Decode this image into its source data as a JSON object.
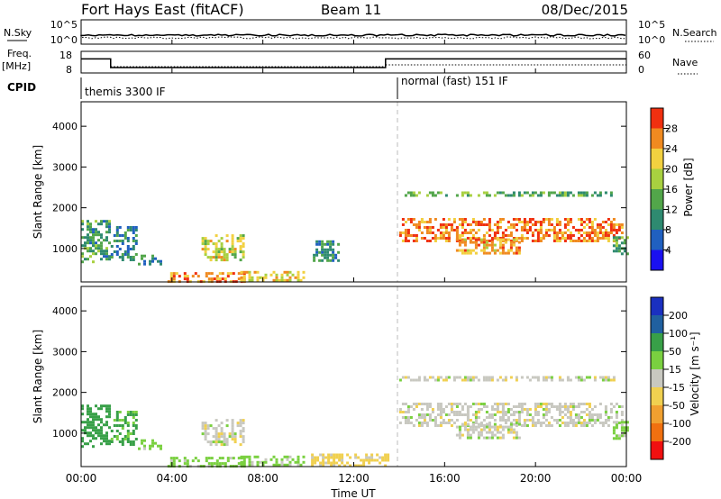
{
  "header": {
    "site": "Fort Hays East (fitACF)",
    "beam": "Beam 11",
    "date": "08/Dec/2015"
  },
  "summary_panels": {
    "nsky_label": "N.Sky",
    "nsearch_label": "N.Search",
    "noise_ticks_left": [
      "10^5",
      "10^0"
    ],
    "noise_ticks_right": [
      "10^5",
      "10^0"
    ],
    "freq_label_1": "Freq.",
    "freq_label_2": "[MHz]",
    "freq_ticks": [
      "18",
      "8"
    ],
    "nave_label": "Nave",
    "nave_ticks": [
      "60",
      "0"
    ],
    "cpid_label": "CPID",
    "cpid_segments": [
      "themis 3300 IF",
      "normal (fast) 151 IF"
    ]
  },
  "axes": {
    "x_ticks": [
      "00:00",
      "04:00",
      "08:00",
      "12:00",
      "16:00",
      "20:00",
      "00:00"
    ],
    "xlabel": "Time UT",
    "ylabel": "Slant Range [km]",
    "y_ticks": [
      "1000",
      "2000",
      "3000",
      "4000"
    ]
  },
  "colorbars": {
    "power_label": "Power [dB]",
    "power_ticks": [
      "4",
      "8",
      "12",
      "16",
      "20",
      "24",
      "28"
    ],
    "power_colors": [
      "#1a10f0",
      "#2060c0",
      "#2e8a70",
      "#52a64a",
      "#a8d040",
      "#f2d040",
      "#f08a20",
      "#f03010"
    ],
    "velocity_label": "Velocity [m s⁻¹]",
    "velocity_ticks": [
      "200",
      "100",
      "50",
      "15",
      "-15",
      "-50",
      "-100",
      "-200"
    ],
    "velocity_colors": [
      "#1a30c0",
      "#2060a0",
      "#38a048",
      "#7ad040",
      "#c8c8c0",
      "#f0d050",
      "#f0a030",
      "#f07010",
      "#f01010"
    ]
  },
  "chart_data": [
    {
      "type": "heatmap",
      "title": "",
      "xlabel": "Time UT",
      "ylabel": "Slant Range [km]",
      "xlim": [
        0,
        24
      ],
      "ylim": [
        180,
        4600
      ],
      "colorbar": "Power [dB]",
      "scatter_regions": [
        {
          "t": [
            0.0,
            1.3
          ],
          "r": [
            700,
            1700
          ],
          "level": 12
        },
        {
          "t": [
            1.3,
            2.4
          ],
          "r": [
            750,
            1550
          ],
          "level": 9
        },
        {
          "t": [
            2.5,
            3.5
          ],
          "r": [
            650,
            850
          ],
          "level": 10
        },
        {
          "t": [
            3.8,
            7.2
          ],
          "r": [
            200,
            420
          ],
          "level": 26
        },
        {
          "t": [
            5.3,
            7.2
          ],
          "r": [
            750,
            1350
          ],
          "level": 20
        },
        {
          "t": [
            7.0,
            9.8
          ],
          "r": [
            250,
            450
          ],
          "level": 21
        },
        {
          "t": [
            10.2,
            11.3
          ],
          "r": [
            700,
            1200
          ],
          "level": 10
        },
        {
          "t": [
            14.0,
            23.8
          ],
          "r": [
            1200,
            1750
          ],
          "level": 27
        },
        {
          "t": [
            14.0,
            23.5
          ],
          "r": [
            2300,
            2400
          ],
          "level": 14
        },
        {
          "t": [
            16.5,
            19.3
          ],
          "r": [
            900,
            1250
          ],
          "level": 24
        },
        {
          "t": [
            23.4,
            24.0
          ],
          "r": [
            900,
            1300
          ],
          "level": 13
        }
      ]
    },
    {
      "type": "heatmap",
      "title": "",
      "xlabel": "Time UT",
      "ylabel": "Slant Range [km]",
      "xlim": [
        0,
        24
      ],
      "ylim": [
        180,
        4600
      ],
      "colorbar": "Velocity [m s⁻¹]",
      "scatter_regions": [
        {
          "t": [
            0.0,
            1.3
          ],
          "r": [
            700,
            1700
          ],
          "vel": 80
        },
        {
          "t": [
            1.3,
            2.4
          ],
          "r": [
            750,
            1550
          ],
          "vel": 60
        },
        {
          "t": [
            2.5,
            3.5
          ],
          "r": [
            650,
            850
          ],
          "vel": 30
        },
        {
          "t": [
            3.8,
            7.2
          ],
          "r": [
            200,
            420
          ],
          "vel": 30
        },
        {
          "t": [
            5.3,
            7.2
          ],
          "r": [
            750,
            1350
          ],
          "vel": 0
        },
        {
          "t": [
            7.0,
            9.8
          ],
          "r": [
            250,
            450
          ],
          "vel": 25
        },
        {
          "t": [
            10.0,
            13.5
          ],
          "r": [
            220,
            500
          ],
          "vel": -30
        },
        {
          "t": [
            14.0,
            23.8
          ],
          "r": [
            1200,
            1750
          ],
          "vel": 0
        },
        {
          "t": [
            14.0,
            23.5
          ],
          "r": [
            2300,
            2400
          ],
          "vel": 0
        },
        {
          "t": [
            16.5,
            19.3
          ],
          "r": [
            900,
            1250
          ],
          "vel": 0
        },
        {
          "t": [
            23.4,
            24.0
          ],
          "r": [
            900,
            1300
          ],
          "vel": 30
        }
      ]
    }
  ]
}
